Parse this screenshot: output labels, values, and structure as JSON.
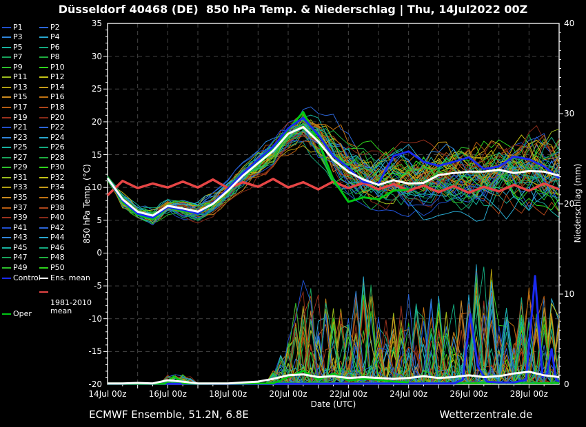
{
  "title": "Düsseldorf 40468 (DE)  850 hPa Temp. & Niederschlag | Thu, 14Jul2022 00Z",
  "footer": {
    "left": "ECMWF Ensemble, 51.2N, 6.8E",
    "right": "Wetterzentrale.de"
  },
  "legend": {
    "member_labels": [
      "P1",
      "P2",
      "P3",
      "P4",
      "P5",
      "P6",
      "P7",
      "P8",
      "P9",
      "P10",
      "P11",
      "P12",
      "P13",
      "P14",
      "P15",
      "P16",
      "P17",
      "P18",
      "P19",
      "P20",
      "P21",
      "P22",
      "P23",
      "P24",
      "P25",
      "P26",
      "P27",
      "P28",
      "P29",
      "P30",
      "P31",
      "P32",
      "P33",
      "P34",
      "P35",
      "P36",
      "P37",
      "P38",
      "P39",
      "P40",
      "P41",
      "P42",
      "P43",
      "P44",
      "P45",
      "P46",
      "P47",
      "P48",
      "P49",
      "P50"
    ],
    "control_label": "Control",
    "ens_mean_label": "Ens. mean",
    "climate_label": "1981-2010 mean",
    "oper_label": "Oper"
  },
  "chart_data": {
    "type": "line",
    "title": "Düsseldorf 40468 (DE)  850 hPa Temp. & Niederschlag | Thu, 14Jul2022 00Z",
    "x_axis": {
      "label": "Date (UTC)",
      "span_days": 15,
      "start": "14Jul 00z",
      "end": "29Jul 00z",
      "ticks": [
        {
          "day": 0,
          "label": "14Jul 00z"
        },
        {
          "day": 2,
          "label": "16Jul 00z"
        },
        {
          "day": 4,
          "label": "18Jul 00z"
        },
        {
          "day": 6,
          "label": "20Jul 00z"
        },
        {
          "day": 8,
          "label": "22Jul 00z"
        },
        {
          "day": 10,
          "label": "24Jul 00z"
        },
        {
          "day": 12,
          "label": "26Jul 00z"
        },
        {
          "day": 14,
          "label": "28Jul 00z"
        }
      ]
    },
    "y_left": {
      "label": "850 hPa Temp. (°C)",
      "min": -20,
      "max": 35,
      "ticks": [
        35,
        30,
        25,
        20,
        15,
        10,
        5,
        0,
        -5,
        -10,
        -15,
        -20
      ]
    },
    "y_right": {
      "label": "Niederschlag (mm)",
      "min": 0,
      "max": 40,
      "ticks": [
        40,
        30,
        20,
        10,
        0
      ]
    },
    "grid": {
      "color": "#454545",
      "dash": "6 5"
    },
    "x_days": [
      0,
      0.5,
      1,
      1.5,
      2,
      2.5,
      3,
      3.5,
      4,
      4.5,
      5,
      5.5,
      6,
      6.5,
      7,
      7.5,
      8,
      8.5,
      9,
      9.5,
      10,
      10.5,
      11,
      11.5,
      12,
      12.5,
      13,
      13.5,
      14,
      14.5,
      15
    ],
    "series": {
      "ens_mean_temp": {
        "name": "Ens. mean",
        "color": "#ffffff",
        "width": 3,
        "axis": "temp",
        "values": [
          11.4,
          8.2,
          6.3,
          5.7,
          7.2,
          6.8,
          6.3,
          7.5,
          9.5,
          11.8,
          13.7,
          15.6,
          18.2,
          19.2,
          17.0,
          14.2,
          12.4,
          11.2,
          10.4,
          11.1,
          10.6,
          10.7,
          11.9,
          12.2,
          12.4,
          12.4,
          12.7,
          12.2,
          12.5,
          12.4,
          11.8
        ]
      },
      "control_temp": {
        "name": "Control",
        "color": "#1a2af0",
        "width": 3,
        "axis": "temp",
        "values": [
          11.4,
          8.0,
          6.0,
          5.4,
          7.0,
          6.6,
          6.0,
          7.6,
          9.8,
          12.2,
          14.2,
          16.2,
          19.0,
          20.6,
          18.0,
          14.8,
          13.0,
          10.8,
          10.6,
          14.8,
          15.5,
          13.9,
          13.3,
          13.9,
          14.6,
          12.8,
          13.2,
          14.7,
          14.3,
          13.2,
          11.4
        ]
      },
      "oper_temp": {
        "name": "Oper",
        "color": "#00c814",
        "width": 3,
        "axis": "temp",
        "x": [
          0,
          0.5,
          1,
          1.5,
          2,
          2.5,
          3,
          3.5,
          4,
          4.5,
          5,
          5.5,
          6,
          6.5,
          7,
          7.5,
          8,
          8.5,
          9,
          9.5,
          10
        ],
        "values": [
          11.4,
          7.8,
          5.8,
          5.2,
          7.0,
          6.5,
          6.0,
          7.4,
          9.6,
          12.0,
          14.0,
          16.0,
          18.8,
          21.5,
          17.0,
          11.2,
          7.8,
          8.5,
          8.2,
          9.5,
          9.7
        ]
      },
      "climate_mean_temp": {
        "name": "1981-2010 mean",
        "color": "#e64545",
        "width": 3.5,
        "axis": "temp",
        "values": [
          8.8,
          11.0,
          9.9,
          10.6,
          10.0,
          10.9,
          10.0,
          11.2,
          9.9,
          10.8,
          10.1,
          11.3,
          10.0,
          10.8,
          9.7,
          10.9,
          9.9,
          10.7,
          9.7,
          10.5,
          9.5,
          10.3,
          9.3,
          10.2,
          9.2,
          10.1,
          9.4,
          10.4,
          9.5,
          10.6,
          9.7
        ]
      },
      "ens_mean_precip": {
        "name": "Ens. mean precip",
        "color": "#ffffff",
        "width": 3,
        "axis": "precip",
        "values": [
          0.1,
          0.1,
          0.15,
          0.1,
          0.45,
          0.3,
          0.1,
          0.1,
          0.1,
          0.2,
          0.3,
          0.6,
          1.0,
          1.1,
          0.8,
          0.9,
          0.7,
          0.8,
          0.7,
          0.6,
          0.7,
          0.9,
          0.7,
          0.8,
          1.0,
          0.8,
          0.9,
          1.2,
          1.4,
          1.0,
          0.8
        ]
      },
      "control_precip": {
        "name": "Control precip",
        "color": "#1a2af0",
        "width": 3,
        "axis": "precip",
        "x": [
          0,
          5.5,
          11.5,
          11.8,
          12.05,
          12.3,
          12.6,
          13.0,
          13.5,
          13.9,
          14.2,
          14.45,
          14.6,
          14.75,
          14.9,
          15
        ],
        "values": [
          0.05,
          0.05,
          0.1,
          0.5,
          7.8,
          2.0,
          0.3,
          0.2,
          0.2,
          0.5,
          12.0,
          0.8,
          1.2,
          3.9,
          0.5,
          0.3
        ]
      },
      "oper_precip": {
        "name": "Oper precip",
        "color": "#00c814",
        "width": 2.5,
        "axis": "precip",
        "x": [
          0,
          1.9,
          2.2,
          2.5,
          3,
          5.5,
          6,
          6.5,
          7,
          7.5,
          8,
          8.5,
          9,
          9.5,
          10
        ],
        "values": [
          0.05,
          0.05,
          0.9,
          0.1,
          0.05,
          0.1,
          0.8,
          1.5,
          0.5,
          1.2,
          0.4,
          0.6,
          0.5,
          0.3,
          0.2
        ]
      }
    },
    "ensemble": {
      "count": 50,
      "palette": [
        "#1f4fd0",
        "#2b66d9",
        "#2f86dd",
        "#28a8cf",
        "#17b3a0",
        "#14aa7e",
        "#18a45c",
        "#1fae3f",
        "#2cc02c",
        "#2ed41c",
        "#9cbc1c",
        "#c6c416",
        "#b5a00e",
        "#c79a18",
        "#cd8a1d",
        "#c27312",
        "#b85c10",
        "#ad451a",
        "#9c321e",
        "#872a18"
      ],
      "temp_envelope": {
        "lo": [
          11.0,
          6.8,
          4.8,
          4.0,
          5.5,
          5.0,
          4.2,
          5.5,
          7.0,
          9.0,
          10.5,
          12.0,
          14.0,
          16.0,
          13.5,
          10.5,
          8.5,
          7.0,
          6.0,
          6.0,
          5.5,
          5.0,
          5.5,
          5.5,
          5.0,
          4.5,
          5.0,
          4.5,
          4.0,
          4.5,
          4.0
        ],
        "hi": [
          11.8,
          9.5,
          7.5,
          7.0,
          8.8,
          8.5,
          8.0,
          9.5,
          11.5,
          14.0,
          16.0,
          18.0,
          21.0,
          23.5,
          23.0,
          21.5,
          20.0,
          18.5,
          17.5,
          17.0,
          17.0,
          17.5,
          18.0,
          18.5,
          19.0,
          19.5,
          20.0,
          20.5,
          21.0,
          21.5,
          21.0
        ]
      },
      "precip_envelope": {
        "hi": [
          0.3,
          0.3,
          0.3,
          0.4,
          1.2,
          1.2,
          0.5,
          0.3,
          0.3,
          0.4,
          0.5,
          1.5,
          6,
          12,
          10,
          9,
          8,
          13.5,
          9,
          8,
          10,
          9,
          10,
          9,
          10,
          17,
          9,
          8,
          12,
          10,
          10
        ]
      }
    }
  }
}
